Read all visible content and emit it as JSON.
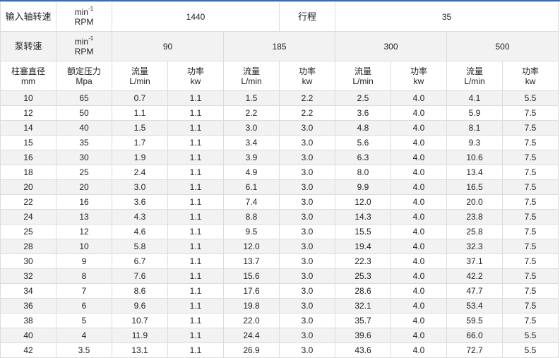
{
  "header": {
    "input_speed_label": "输入轴转速",
    "unit_min": "min",
    "unit_sup": "-1",
    "unit_rpm": "RPM",
    "input_speed_value": "1440",
    "stroke_label": "行程",
    "stroke_value": "35",
    "pump_speed_label": "泵转速",
    "pump_speeds": [
      "90",
      "185",
      "300",
      "500"
    ],
    "plunger_label": "柱塞直径",
    "plunger_unit": "mm",
    "pressure_label": "额定压力",
    "pressure_unit": "Mpa",
    "flow_label": "流量",
    "flow_unit": "L/min",
    "power_label": "功率",
    "power_unit": "kw"
  },
  "rows": [
    [
      "10",
      "65",
      "0.7",
      "1.1",
      "1.5",
      "2.2",
      "2.5",
      "4.0",
      "4.1",
      "5.5"
    ],
    [
      "12",
      "50",
      "1.1",
      "1.1",
      "2.2",
      "2.2",
      "3.6",
      "4.0",
      "5.9",
      "7.5"
    ],
    [
      "14",
      "40",
      "1.5",
      "1.1",
      "3.0",
      "3.0",
      "4.8",
      "4.0",
      "8.1",
      "7.5"
    ],
    [
      "15",
      "35",
      "1.7",
      "1.1",
      "3.4",
      "3.0",
      "5.6",
      "4.0",
      "9.3",
      "7.5"
    ],
    [
      "16",
      "30",
      "1.9",
      "1.1",
      "3.9",
      "3.0",
      "6.3",
      "4.0",
      "10.6",
      "7.5"
    ],
    [
      "18",
      "25",
      "2.4",
      "1.1",
      "4.9",
      "3.0",
      "8.0",
      "4.0",
      "13.4",
      "7.5"
    ],
    [
      "20",
      "20",
      "3.0",
      "1.1",
      "6.1",
      "3.0",
      "9.9",
      "4.0",
      "16.5",
      "7.5"
    ],
    [
      "22",
      "16",
      "3.6",
      "1.1",
      "7.4",
      "3.0",
      "12.0",
      "4.0",
      "20.0",
      "7.5"
    ],
    [
      "24",
      "13",
      "4.3",
      "1.1",
      "8.8",
      "3.0",
      "14.3",
      "4.0",
      "23.8",
      "7.5"
    ],
    [
      "25",
      "12",
      "4.6",
      "1.1",
      "9.5",
      "3.0",
      "15.5",
      "4.0",
      "25.8",
      "7.5"
    ],
    [
      "28",
      "10",
      "5.8",
      "1.1",
      "12.0",
      "3.0",
      "19.4",
      "4.0",
      "32.3",
      "7.5"
    ],
    [
      "30",
      "9",
      "6.7",
      "1.1",
      "13.7",
      "3.0",
      "22.3",
      "4.0",
      "37.1",
      "7.5"
    ],
    [
      "32",
      "8",
      "7.6",
      "1.1",
      "15.6",
      "3.0",
      "25.3",
      "4.0",
      "42.2",
      "7.5"
    ],
    [
      "34",
      "7",
      "8.6",
      "1.1",
      "17.6",
      "3.0",
      "28.6",
      "4.0",
      "47.7",
      "7.5"
    ],
    [
      "36",
      "6",
      "9.6",
      "1.1",
      "19.8",
      "3.0",
      "32.1",
      "4.0",
      "53.4",
      "7.5"
    ],
    [
      "38",
      "5",
      "10.7",
      "1.1",
      "22.0",
      "3.0",
      "35.7",
      "4.0",
      "59.5",
      "7.5"
    ],
    [
      "40",
      "4",
      "11.9",
      "1.1",
      "24.4",
      "3.0",
      "39.6",
      "4.0",
      "66.0",
      "5.5"
    ],
    [
      "42",
      "3.5",
      "13.1",
      "1.1",
      "26.9",
      "3.0",
      "43.6",
      "4.0",
      "72.7",
      "5.5"
    ]
  ]
}
